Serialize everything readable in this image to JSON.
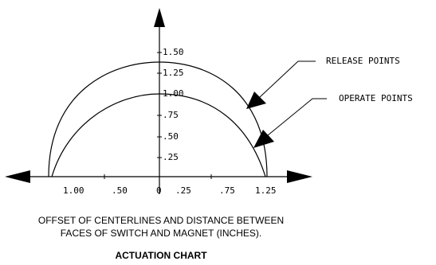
{
  "diagram": {
    "y_ticks": [
      "1.50",
      "1.25",
      "1.00",
      ".75",
      ".50",
      ".25"
    ],
    "x_ticks": [
      "1.00",
      ".50",
      "0",
      ".25",
      ".75",
      "1.25"
    ],
    "callouts": {
      "release": "RELEASE POINTS",
      "operate": "OPERATE POINTS"
    },
    "caption_line1": "OFFSET OF CENTERLINES AND DISTANCE BETWEEN",
    "caption_line2": "FACES OF SWITCH AND MAGNET (INCHES).",
    "title": "ACTUATION CHART"
  }
}
